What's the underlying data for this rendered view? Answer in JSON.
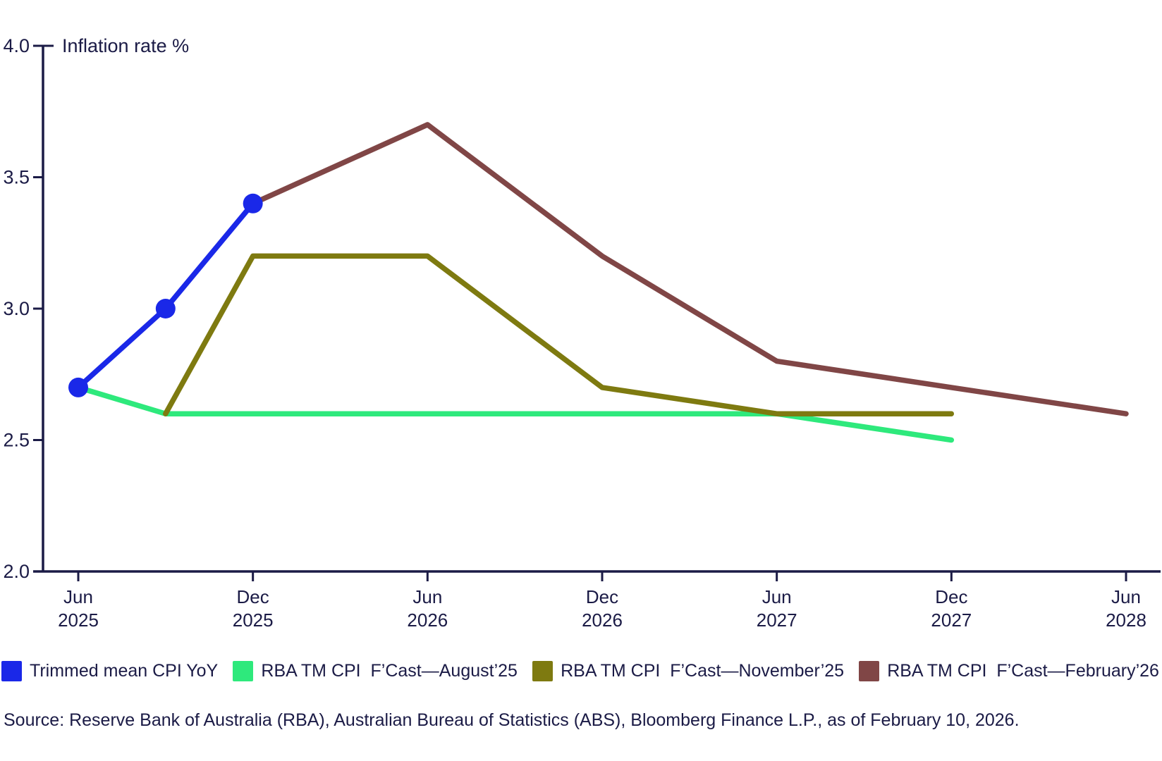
{
  "chart": {
    "source": "Source: Reserve Bank of Australia (RBA), Australian Bureau of Statistics (ABS), Bloomberg Finance L.P., as of February 10, 2026.",
    "colors": {
      "text": "#1b1b46",
      "axis": "#1b1b46",
      "background": "#ffffff"
    }
  },
  "chart_data": {
    "type": "line",
    "title": "",
    "ylabel": "Inflation rate %",
    "xlabel": "",
    "ylim": [
      2.0,
      4.0
    ],
    "yticks": [
      2.0,
      2.5,
      3.0,
      3.5,
      4.0
    ],
    "grid": false,
    "legend_position": "bottom",
    "x_unit": "months-since-Jun-2025",
    "xlim": [
      0,
      36
    ],
    "xticks": [
      {
        "pos": 0,
        "line1": "Jun",
        "line2": "2025"
      },
      {
        "pos": 6,
        "line1": "Dec",
        "line2": "2025"
      },
      {
        "pos": 12,
        "line1": "Jun",
        "line2": "2026"
      },
      {
        "pos": 18,
        "line1": "Dec",
        "line2": "2026"
      },
      {
        "pos": 24,
        "line1": "Jun",
        "line2": "2027"
      },
      {
        "pos": 30,
        "line1": "Dec",
        "line2": "2027"
      },
      {
        "pos": 36,
        "line1": "Jun",
        "line2": "2028"
      }
    ],
    "series": [
      {
        "name": "RBA TM CPI  F’Cast—August’25",
        "color": "#2ee97c",
        "marker": false,
        "x": [
          0,
          3,
          6,
          12,
          18,
          24,
          30
        ],
        "values": [
          2.7,
          2.6,
          2.6,
          2.6,
          2.6,
          2.6,
          2.5
        ]
      },
      {
        "name": "RBA TM CPI  F’Cast—November’25",
        "color": "#7e7a10",
        "marker": false,
        "x": [
          3,
          6,
          12,
          18,
          24,
          30
        ],
        "values": [
          2.6,
          3.2,
          3.2,
          2.7,
          2.6,
          2.6
        ]
      },
      {
        "name": "RBA TM CPI  F’Cast—February’26",
        "color": "#804646",
        "marker": false,
        "x": [
          6,
          12,
          18,
          24,
          30,
          36
        ],
        "values": [
          3.4,
          3.7,
          3.2,
          2.8,
          2.7,
          2.6
        ]
      },
      {
        "name": "Trimmed mean CPI YoY",
        "color": "#1a28e8",
        "marker": true,
        "x": [
          0,
          3,
          6
        ],
        "values": [
          2.7,
          3.0,
          3.4
        ]
      }
    ],
    "legend_order": [
      3,
      0,
      1,
      2
    ]
  }
}
